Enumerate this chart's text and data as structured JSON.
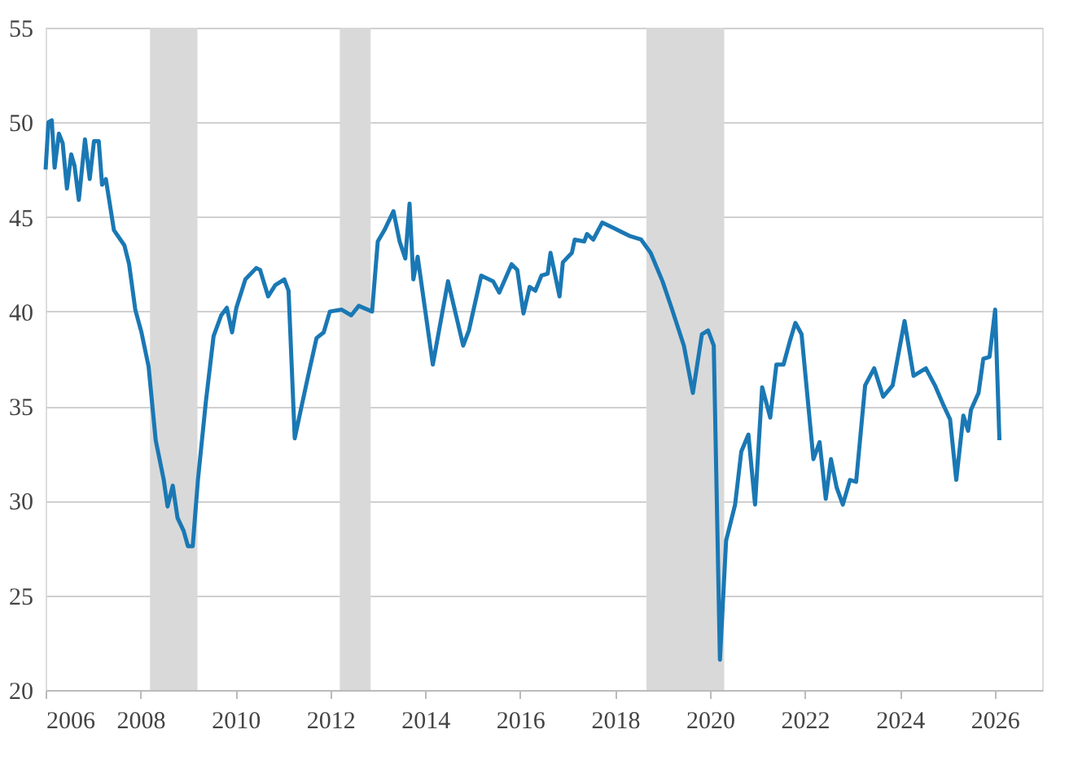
{
  "chart_data": {
    "type": "line",
    "x": [
      2006.0,
      2006.06,
      2006.13,
      2006.19,
      2006.28,
      2006.36,
      2006.45,
      2006.54,
      2006.61,
      2006.7,
      2006.83,
      2006.93,
      2007.02,
      2007.12,
      2007.19,
      2007.27,
      2007.44,
      2007.66,
      2007.76,
      2007.89,
      2008.02,
      2008.17,
      2008.32,
      2008.49,
      2008.57,
      2008.68,
      2008.78,
      2008.91,
      2009.0,
      2009.1,
      2009.21,
      2009.38,
      2009.54,
      2009.7,
      2009.82,
      2009.93,
      2010.02,
      2010.21,
      2010.44,
      2010.52,
      2010.69,
      2010.84,
      2011.03,
      2011.12,
      2011.25,
      2011.42,
      2011.55,
      2011.71,
      2011.86,
      2011.99,
      2012.24,
      2012.44,
      2012.6,
      2012.88,
      2013.0,
      2013.14,
      2013.33,
      2013.46,
      2013.58,
      2013.67,
      2013.75,
      2013.84,
      2014.16,
      2014.48,
      2014.8,
      2014.92,
      2015.18,
      2015.43,
      2015.56,
      2015.82,
      2015.94,
      2016.07,
      2016.2,
      2016.32,
      2016.45,
      2016.58,
      2016.64,
      2016.83,
      2016.9,
      2017.09,
      2017.15,
      2017.35,
      2017.41,
      2017.54,
      2017.73,
      2017.98,
      2018.3,
      2018.55,
      2018.75,
      2019.0,
      2019.19,
      2019.45,
      2019.64,
      2019.83,
      2019.96,
      2020.08,
      2020.21,
      2020.34,
      2020.53,
      2020.66,
      2020.81,
      2020.95,
      2021.1,
      2021.27,
      2021.4,
      2021.55,
      2021.68,
      2021.8,
      2021.93,
      2022.18,
      2022.31,
      2022.44,
      2022.55,
      2022.67,
      2022.8,
      2022.95,
      2023.08,
      2023.27,
      2023.46,
      2023.65,
      2023.85,
      2024.1,
      2024.29,
      2024.55,
      2024.74,
      2024.93,
      2025.06,
      2025.19,
      2025.34,
      2025.44,
      2025.5,
      2025.66,
      2025.76,
      2025.89,
      2026.01,
      2026.1
    ],
    "series": [
      {
        "color": "#1a78b4",
        "values": [
          47.5,
          50.0,
          50.1,
          47.6,
          49.4,
          48.9,
          46.5,
          48.3,
          47.7,
          45.9,
          49.1,
          47.0,
          49.0,
          49.0,
          46.7,
          47.0,
          44.3,
          43.5,
          42.5,
          40.1,
          38.9,
          37.1,
          33.2,
          31.1,
          29.7,
          30.8,
          29.1,
          28.4,
          27.6,
          27.6,
          31.1,
          35.3,
          38.7,
          39.8,
          40.2,
          38.9,
          40.2,
          41.7,
          42.3,
          42.2,
          40.8,
          41.4,
          41.7,
          41.1,
          33.3,
          35.3,
          36.8,
          38.6,
          38.9,
          40.0,
          40.1,
          39.8,
          40.3,
          40.0,
          43.7,
          44.3,
          45.3,
          43.7,
          42.8,
          45.7,
          41.7,
          42.9,
          37.2,
          41.6,
          38.2,
          39.0,
          41.9,
          41.6,
          41.0,
          42.5,
          42.2,
          39.9,
          41.3,
          41.1,
          41.9,
          42.0,
          43.1,
          40.8,
          42.6,
          43.1,
          43.8,
          43.7,
          44.1,
          43.8,
          44.7,
          44.4,
          44.0,
          43.8,
          43.1,
          41.6,
          40.2,
          38.2,
          35.7,
          38.8,
          39.0,
          38.2,
          21.6,
          27.9,
          29.8,
          32.6,
          33.5,
          29.8,
          36.0,
          34.4,
          37.2,
          37.2,
          38.4,
          39.4,
          38.8,
          32.2,
          33.1,
          30.1,
          32.2,
          30.7,
          29.8,
          31.1,
          31.0,
          36.1,
          37.0,
          35.5,
          36.1,
          39.5,
          36.6,
          37.0,
          36.1,
          35.0,
          34.3,
          31.1,
          34.5,
          33.7,
          34.8,
          35.7,
          37.5,
          37.6,
          40.1,
          33.2
        ]
      }
    ],
    "xlim": [
      2006,
      2027
    ],
    "xticks": [
      2006,
      2008,
      2010,
      2012,
      2014,
      2016,
      2018,
      2020,
      2022,
      2024,
      2026
    ],
    "ylim": [
      20,
      55
    ],
    "yticks": [
      20,
      25,
      30,
      35,
      40,
      45,
      50,
      55
    ],
    "grid": "y",
    "line_style": "solid",
    "marker": "none",
    "bands": [
      {
        "axis": "x",
        "from": 2008.2,
        "to": 2009.2,
        "color": "#d9d9d9"
      },
      {
        "axis": "x",
        "from": 2012.2,
        "to": 2012.85,
        "color": "#d9d9d9"
      },
      {
        "axis": "x",
        "from": 2018.66,
        "to": 2020.3,
        "color": "#d9d9d9"
      }
    ]
  }
}
